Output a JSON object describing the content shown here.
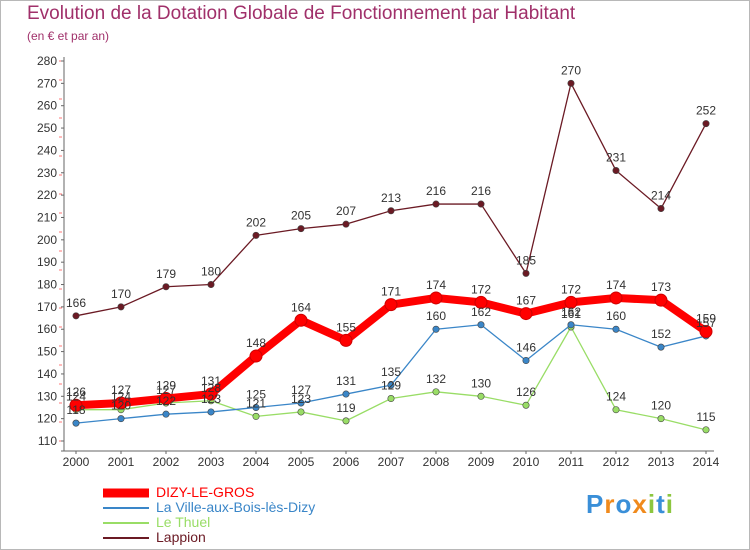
{
  "title": "Evolution de la Dotation Globale de Fonctionnement par Habitant",
  "subtitle": "(en € et par an)",
  "logo": {
    "chars": [
      "P",
      "r",
      "o",
      "x",
      "i",
      "t",
      "i"
    ],
    "colors": [
      "#3a8fd8",
      "#f08a1c",
      "#3a8fd8",
      "#f08a1c",
      "#8cc63f",
      "#3a8fd8",
      "#8cc63f"
    ]
  },
  "chart_data": {
    "type": "line",
    "title": "Evolution de la Dotation Globale de Fonctionnement par Habitant",
    "subtitle": "(en € et par an)",
    "x": [
      "2000",
      "2001",
      "2002",
      "2003",
      "2004",
      "2005",
      "2006",
      "2007",
      "2008",
      "2009",
      "2010",
      "2011",
      "2012",
      "2013",
      "2014"
    ],
    "y_ticks": [
      "110",
      "120",
      "130",
      "140",
      "150",
      "160",
      "170",
      "180",
      "190",
      "200",
      "210",
      "220",
      "230",
      "240",
      "250",
      "260",
      "270",
      "280"
    ],
    "ylim": [
      110,
      280
    ],
    "grid": false,
    "legend_position": "bottom-left",
    "series": [
      {
        "name": "DIZY-LE-GROS",
        "color": "#ff0000",
        "label_color": "#333333",
        "values": [
          126,
          127,
          129,
          131,
          148,
          164,
          155,
          171,
          174,
          172,
          167,
          172,
          174,
          173,
          159
        ]
      },
      {
        "name": "La Ville-aux-Bois-lès-Dizy",
        "color": "#3a86c8",
        "label_color": "#333333",
        "values": [
          118,
          120,
          122,
          123,
          125,
          127,
          131,
          135,
          160,
          162,
          146,
          162,
          160,
          152,
          157
        ]
      },
      {
        "name": "Le Thuel",
        "color": "#99dd66",
        "label_color": "#333333",
        "values": [
          124,
          124,
          127,
          128,
          121,
          123,
          119,
          129,
          132,
          130,
          126,
          161,
          124,
          120,
          115
        ]
      },
      {
        "name": "Lappion",
        "color": "#6b1a24",
        "label_color": "#333333",
        "values": [
          166,
          170,
          179,
          180,
          202,
          205,
          207,
          213,
          216,
          216,
          185,
          270,
          231,
          214,
          252
        ]
      }
    ]
  }
}
